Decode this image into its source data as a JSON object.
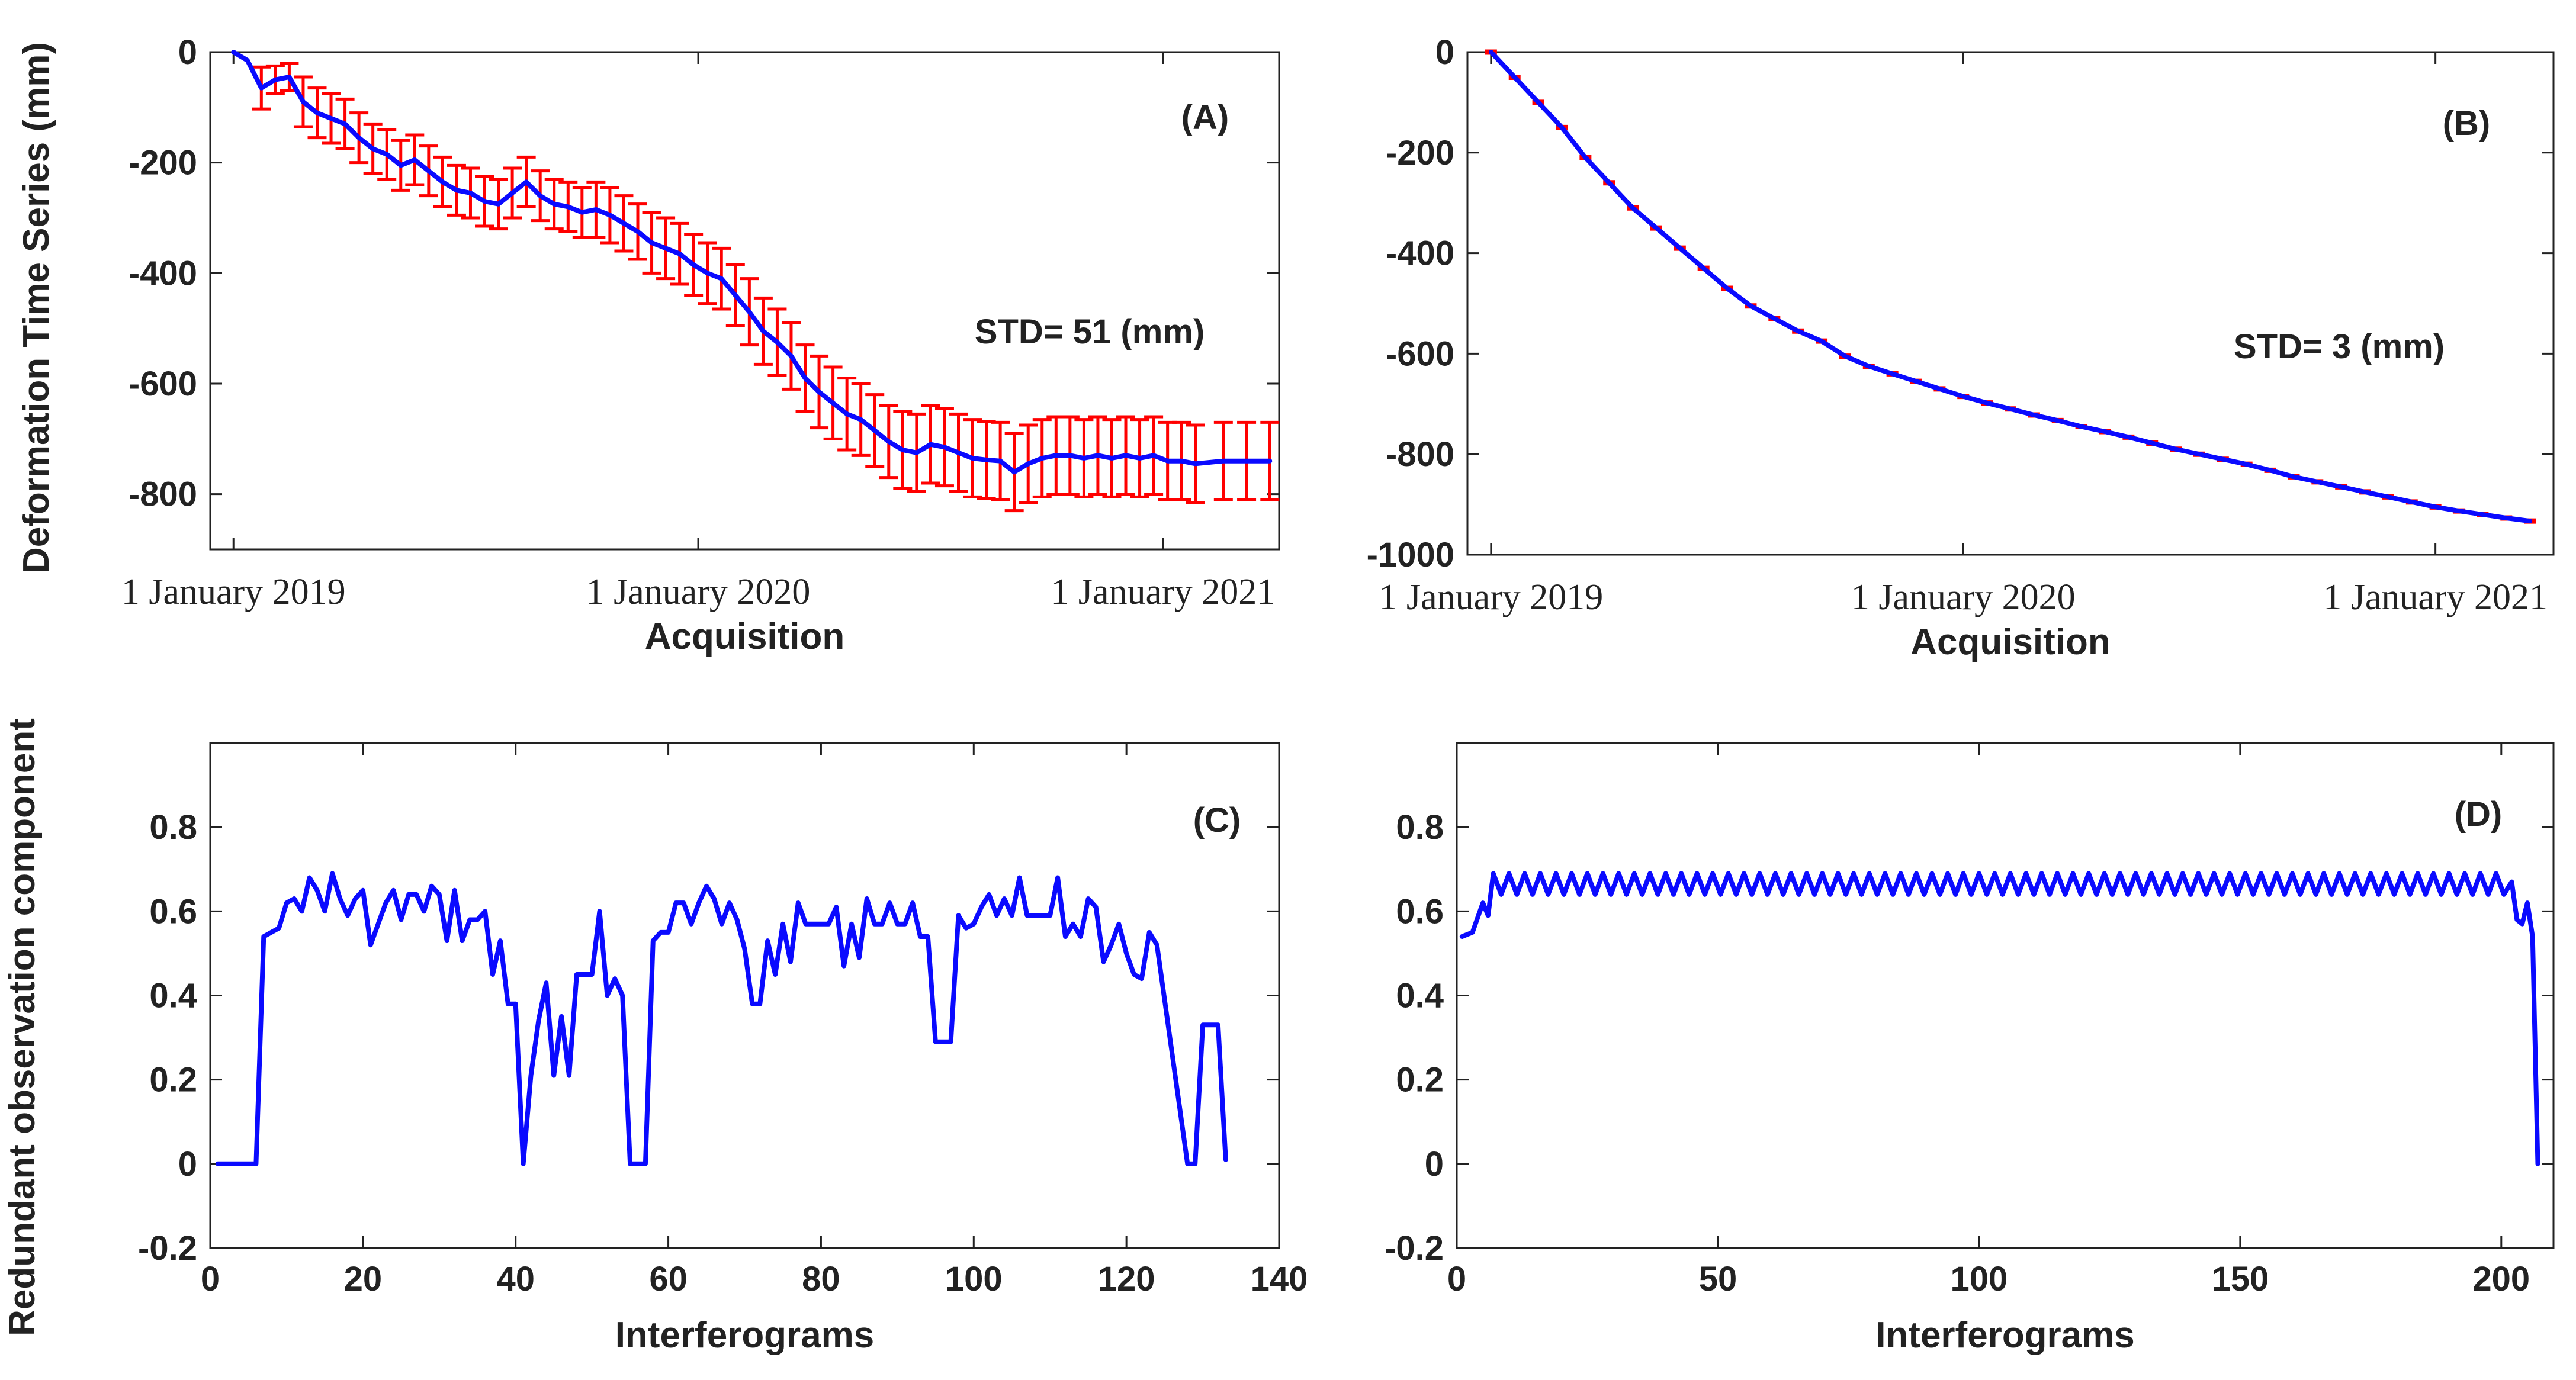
{
  "colors": {
    "line": "#0a0aff",
    "error": "#ff0000",
    "axis": "#222222"
  },
  "y_label_top": "Deformation Time Series (mm)",
  "y_label_bottom": "Redundant observation component",
  "chart_data": [
    {
      "id": "A",
      "type": "line",
      "panel_label": "(A)",
      "annotation": "STD= 51 (mm)",
      "xlabel": "Acquisition",
      "xlim": [
        2018.95,
        2021.25
      ],
      "ylim": [
        -900,
        0
      ],
      "xticks": [
        {
          "v": 2019.0,
          "label": "1 January 2019"
        },
        {
          "v": 2020.0,
          "label": "1 January 2020"
        },
        {
          "v": 2021.0,
          "label": "1 January 2021"
        }
      ],
      "yticks": [
        {
          "v": 0,
          "label": "0"
        },
        {
          "v": -200,
          "label": "-200"
        },
        {
          "v": -400,
          "label": "-400"
        },
        {
          "v": -600,
          "label": "-600"
        },
        {
          "v": -800,
          "label": "-800"
        }
      ],
      "series": [
        {
          "name": "deformation",
          "x": [
            2019.0,
            2019.03,
            2019.06,
            2019.09,
            2019.12,
            2019.15,
            2019.18,
            2019.21,
            2019.24,
            2019.27,
            2019.3,
            2019.33,
            2019.36,
            2019.39,
            2019.42,
            2019.45,
            2019.48,
            2019.51,
            2019.54,
            2019.57,
            2019.6,
            2019.63,
            2019.66,
            2019.69,
            2019.72,
            2019.75,
            2019.78,
            2019.81,
            2019.84,
            2019.87,
            2019.9,
            2019.93,
            2019.96,
            2019.99,
            2020.02,
            2020.05,
            2020.08,
            2020.11,
            2020.14,
            2020.17,
            2020.2,
            2020.23,
            2020.26,
            2020.29,
            2020.32,
            2020.35,
            2020.38,
            2020.41,
            2020.44,
            2020.47,
            2020.5,
            2020.53,
            2020.56,
            2020.59,
            2020.62,
            2020.65,
            2020.68,
            2020.71,
            2020.74,
            2020.77,
            2020.8,
            2020.83,
            2020.86,
            2020.89,
            2020.92,
            2020.95,
            2020.98,
            2021.01,
            2021.04,
            2021.07,
            2021.13,
            2021.18,
            2021.23
          ],
          "y": [
            0,
            -15,
            -65,
            -50,
            -45,
            -90,
            -110,
            -120,
            -130,
            -155,
            -175,
            -185,
            -205,
            -195,
            -215,
            -235,
            -250,
            -255,
            -270,
            -275,
            -255,
            -235,
            -260,
            -275,
            -280,
            -290,
            -285,
            -295,
            -310,
            -325,
            -345,
            -355,
            -365,
            -385,
            -400,
            -410,
            -440,
            -470,
            -505,
            -525,
            -550,
            -590,
            -615,
            -635,
            -655,
            -665,
            -685,
            -705,
            -720,
            -725,
            -710,
            -715,
            -725,
            -735,
            -738,
            -740,
            -760,
            -745,
            -735,
            -730,
            -730,
            -735,
            -730,
            -735,
            -730,
            -735,
            -730,
            -740,
            -740,
            -745,
            -740,
            -740,
            -740
          ],
          "err": [
            0,
            0,
            38,
            25,
            25,
            45,
            45,
            45,
            45,
            45,
            45,
            45,
            45,
            45,
            45,
            45,
            45,
            45,
            45,
            45,
            45,
            45,
            45,
            45,
            45,
            45,
            50,
            50,
            50,
            50,
            55,
            55,
            55,
            55,
            55,
            55,
            55,
            60,
            60,
            60,
            60,
            60,
            65,
            65,
            65,
            65,
            65,
            65,
            70,
            70,
            70,
            70,
            70,
            70,
            70,
            70,
            70,
            70,
            70,
            70,
            70,
            70,
            70,
            70,
            70,
            70,
            70,
            70,
            70,
            70,
            70,
            70,
            70
          ]
        }
      ]
    },
    {
      "id": "B",
      "type": "line",
      "panel_label": "(B)",
      "annotation": "STD= 3 (mm)",
      "xlabel": "Acquisition",
      "xlim": [
        2018.95,
        2021.25
      ],
      "ylim": [
        -1000,
        0
      ],
      "xticks": [
        {
          "v": 2019.0,
          "label": "1 January 2019"
        },
        {
          "v": 2020.0,
          "label": "1 January 2020"
        },
        {
          "v": 2021.0,
          "label": "1 January 2021"
        }
      ],
      "yticks": [
        {
          "v": 0,
          "label": "0"
        },
        {
          "v": -200,
          "label": "-200"
        },
        {
          "v": -400,
          "label": "-400"
        },
        {
          "v": -600,
          "label": "-600"
        },
        {
          "v": -800,
          "label": "-800"
        },
        {
          "v": -1000,
          "label": "-1000"
        }
      ],
      "series": [
        {
          "name": "deformation",
          "x": [
            2019.0,
            2019.05,
            2019.1,
            2019.15,
            2019.2,
            2019.25,
            2019.3,
            2019.35,
            2019.4,
            2019.45,
            2019.5,
            2019.55,
            2019.6,
            2019.65,
            2019.7,
            2019.75,
            2019.8,
            2019.85,
            2019.9,
            2019.95,
            2020.0,
            2020.05,
            2020.1,
            2020.15,
            2020.2,
            2020.25,
            2020.3,
            2020.35,
            2020.4,
            2020.45,
            2020.5,
            2020.55,
            2020.6,
            2020.65,
            2020.7,
            2020.75,
            2020.8,
            2020.85,
            2020.9,
            2020.95,
            2021.0,
            2021.05,
            2021.1,
            2021.15,
            2021.2
          ],
          "y": [
            0,
            -50,
            -100,
            -150,
            -210,
            -260,
            -310,
            -350,
            -390,
            -430,
            -470,
            -505,
            -530,
            -555,
            -575,
            -605,
            -625,
            -640,
            -655,
            -670,
            -685,
            -698,
            -710,
            -722,
            -733,
            -745,
            -755,
            -766,
            -778,
            -790,
            -800,
            -810,
            -820,
            -832,
            -845,
            -855,
            -865,
            -875,
            -885,
            -895,
            -905,
            -913,
            -920,
            -927,
            -933
          ],
          "err": [
            5,
            5,
            5,
            5,
            5,
            5,
            5,
            5,
            5,
            5,
            5,
            5,
            5,
            5,
            5,
            5,
            5,
            5,
            5,
            5,
            5,
            5,
            5,
            5,
            5,
            5,
            5,
            5,
            5,
            5,
            5,
            5,
            5,
            5,
            5,
            5,
            5,
            5,
            5,
            5,
            5,
            5,
            5,
            5,
            5
          ]
        }
      ]
    },
    {
      "id": "C",
      "type": "line",
      "panel_label": "(C)",
      "xlabel": "Interferograms",
      "xlim": [
        0,
        140
      ],
      "ylim": [
        -0.2,
        1.0
      ],
      "xticks": [
        {
          "v": 0,
          "label": "0"
        },
        {
          "v": 20,
          "label": "20"
        },
        {
          "v": 40,
          "label": "40"
        },
        {
          "v": 60,
          "label": "60"
        },
        {
          "v": 80,
          "label": "80"
        },
        {
          "v": 100,
          "label": "100"
        },
        {
          "v": 120,
          "label": "120"
        },
        {
          "v": 140,
          "label": "140"
        }
      ],
      "yticks": [
        {
          "v": -0.2,
          "label": "-0.2"
        },
        {
          "v": 0,
          "label": "0"
        },
        {
          "v": 0.2,
          "label": "0.2"
        },
        {
          "v": 0.4,
          "label": "0.4"
        },
        {
          "v": 0.6,
          "label": "0.6"
        },
        {
          "v": 0.8,
          "label": "0.8"
        }
      ],
      "series": [
        {
          "name": "redundancy",
          "x": [
            1,
            6,
            7,
            8,
            9,
            10,
            11,
            12,
            13,
            14,
            15,
            16,
            17,
            18,
            19,
            20,
            21,
            22,
            23,
            24,
            25,
            26,
            27,
            28,
            29,
            30,
            31,
            32,
            33,
            34,
            35,
            36,
            37,
            38,
            39,
            40,
            41,
            42,
            43,
            44,
            45,
            46,
            47,
            48,
            49,
            50,
            51,
            52,
            53,
            54,
            55,
            56,
            57,
            58,
            59,
            60,
            61,
            62,
            63,
            64,
            65,
            66,
            67,
            68,
            69,
            70,
            71,
            72,
            73,
            74,
            75,
            76,
            77,
            78,
            79,
            80,
            81,
            82,
            83,
            84,
            85,
            86,
            87,
            88,
            89,
            90,
            91,
            92,
            93,
            94,
            95,
            96,
            97,
            98,
            99,
            100,
            101,
            102,
            103,
            104,
            105,
            106,
            107,
            108,
            109,
            110,
            111,
            112,
            113,
            114,
            115,
            116,
            117,
            118,
            119,
            120,
            121,
            122,
            123,
            124,
            128,
            129,
            130,
            131,
            132,
            133
          ],
          "y": [
            0,
            0,
            0.54,
            0.55,
            0.56,
            0.62,
            0.63,
            0.6,
            0.68,
            0.65,
            0.6,
            0.69,
            0.63,
            0.59,
            0.63,
            0.65,
            0.52,
            0.57,
            0.62,
            0.65,
            0.58,
            0.64,
            0.64,
            0.6,
            0.66,
            0.64,
            0.53,
            0.65,
            0.53,
            0.58,
            0.58,
            0.6,
            0.45,
            0.53,
            0.38,
            0.38,
            0,
            0.21,
            0.34,
            0.43,
            0.21,
            0.35,
            0.21,
            0.45,
            0.45,
            0.45,
            0.6,
            0.4,
            0.44,
            0.4,
            0,
            0,
            0,
            0.53,
            0.55,
            0.55,
            0.62,
            0.62,
            0.57,
            0.62,
            0.66,
            0.63,
            0.57,
            0.62,
            0.58,
            0.51,
            0.38,
            0.38,
            0.53,
            0.45,
            0.57,
            0.48,
            0.62,
            0.57,
            0.57,
            0.57,
            0.57,
            0.61,
            0.47,
            0.57,
            0.49,
            0.63,
            0.57,
            0.57,
            0.62,
            0.57,
            0.57,
            0.62,
            0.54,
            0.54,
            0.29,
            0.29,
            0.29,
            0.59,
            0.56,
            0.57,
            0.61,
            0.64,
            0.59,
            0.63,
            0.59,
            0.68,
            0.59,
            0.59,
            0.59,
            0.59,
            0.68,
            0.54,
            0.57,
            0.54,
            0.63,
            0.61,
            0.48,
            0.52,
            0.57,
            0.5,
            0.45,
            0.44,
            0.55,
            0.52,
            0,
            0,
            0.33,
            0.33,
            0.33,
            0.01
          ]
        }
      ]
    },
    {
      "id": "D",
      "type": "line",
      "panel_label": "(D)",
      "xlabel": "Interferograms",
      "xlim": [
        0,
        210
      ],
      "ylim": [
        -0.2,
        1.0
      ],
      "xticks": [
        {
          "v": 0,
          "label": "0"
        },
        {
          "v": 50,
          "label": "50"
        },
        {
          "v": 100,
          "label": "100"
        },
        {
          "v": 150,
          "label": "150"
        },
        {
          "v": 200,
          "label": "200"
        }
      ],
      "yticks": [
        {
          "v": -0.2,
          "label": "-0.2"
        },
        {
          "v": 0,
          "label": "0"
        },
        {
          "v": 0.2,
          "label": "0.2"
        },
        {
          "v": 0.4,
          "label": "0.4"
        },
        {
          "v": 0.6,
          "label": "0.6"
        },
        {
          "v": 0.8,
          "label": "0.8"
        }
      ],
      "series": [
        {
          "name": "redundancy",
          "pattern": "oscillating",
          "x_start": 1,
          "x_rise": 7,
          "x_fall": 202,
          "x_end": 207,
          "start_value": 0.54,
          "plateau_min": 0.64,
          "plateau_max": 0.69,
          "period": 3,
          "tail_x": [
            202,
            203,
            204,
            205,
            206,
            207
          ],
          "tail_y": [
            0.67,
            0.58,
            0.57,
            0.62,
            0.54,
            0.0
          ]
        }
      ]
    }
  ]
}
